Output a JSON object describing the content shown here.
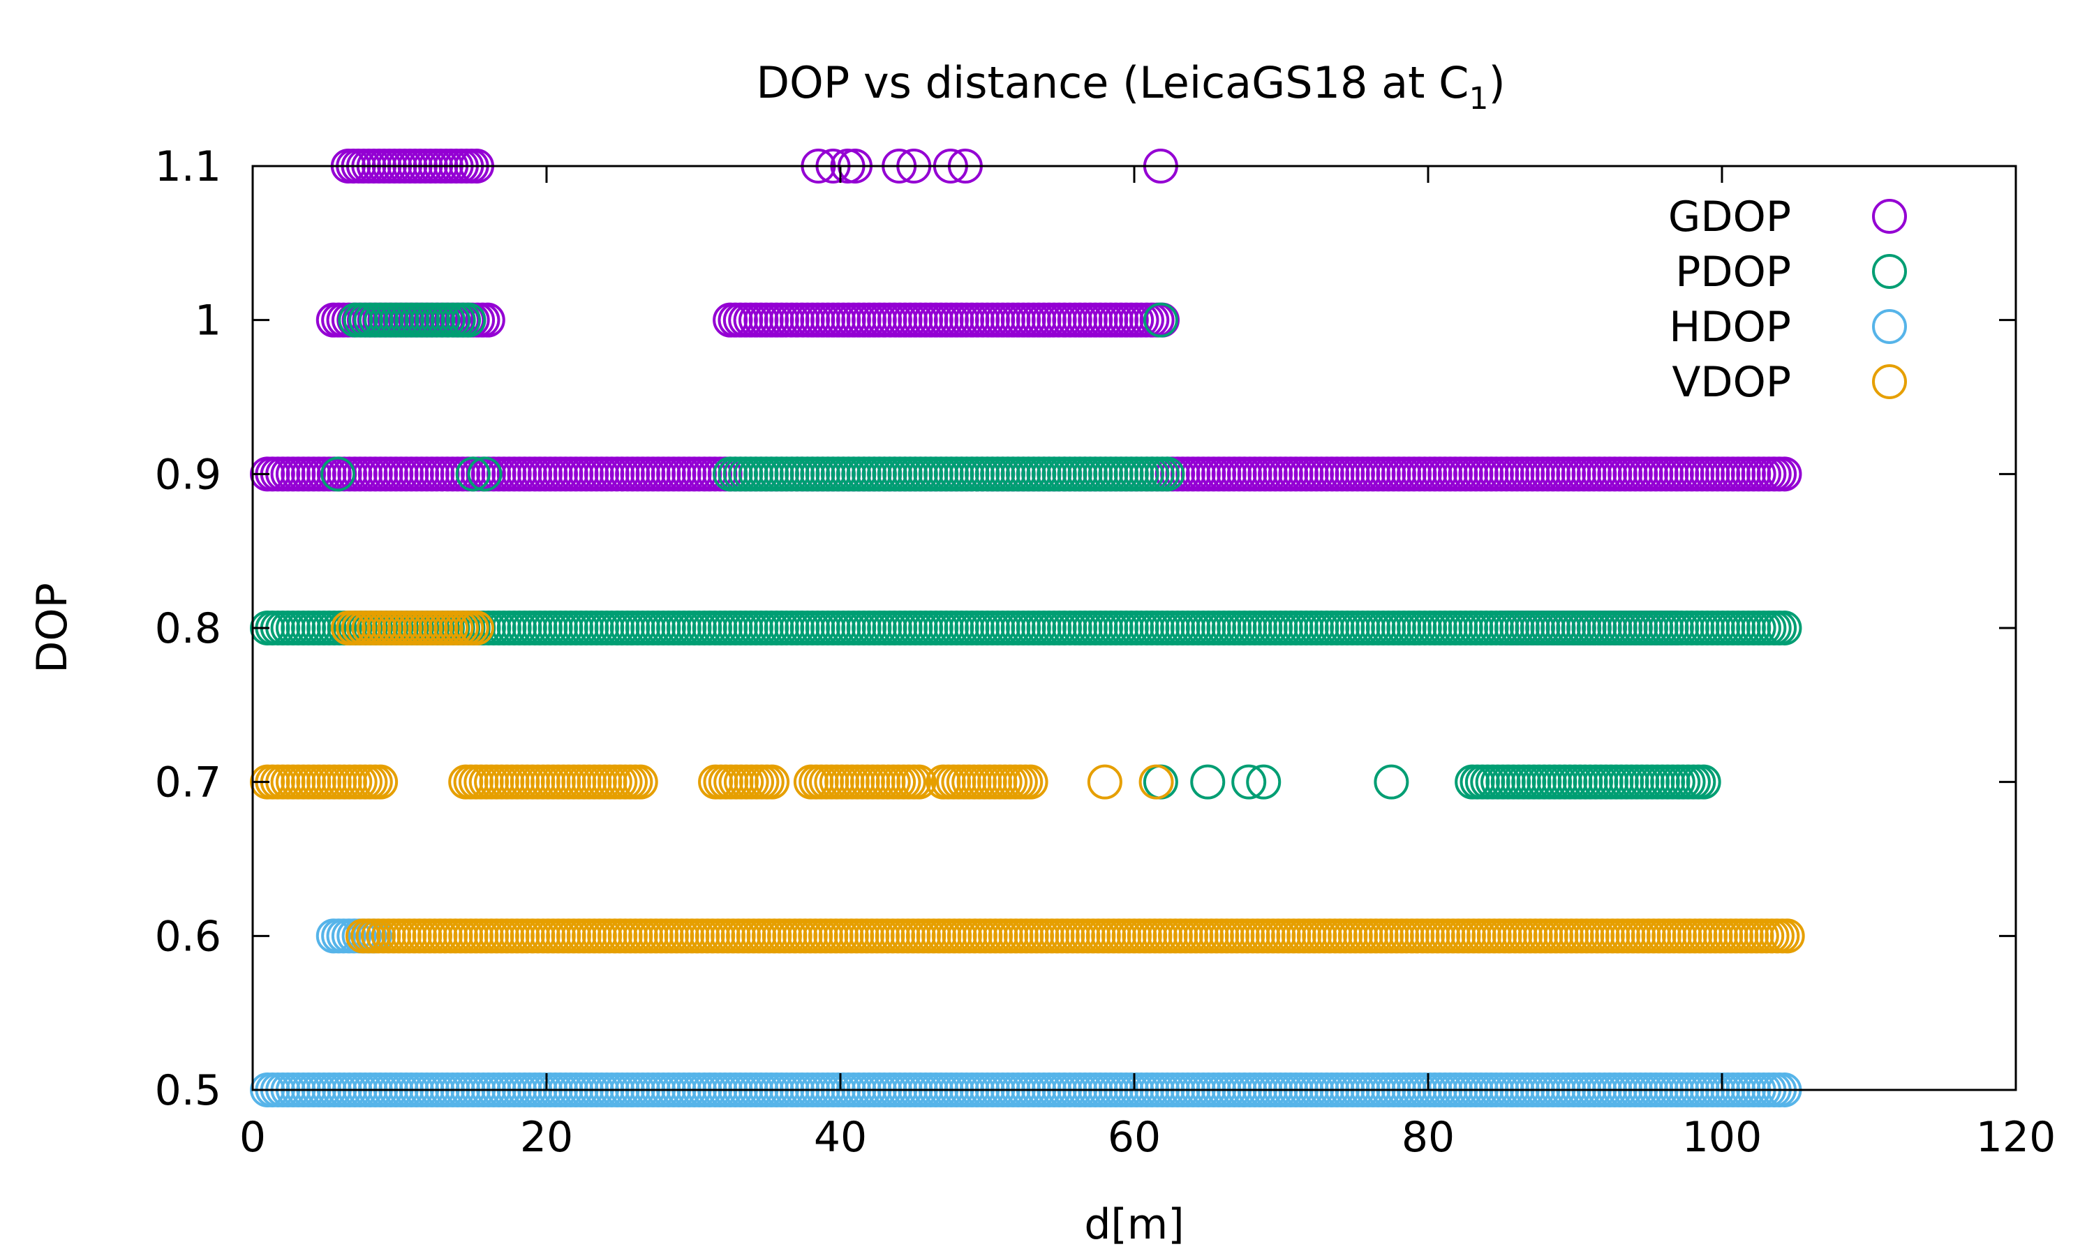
{
  "chart_data": {
    "type": "scatter",
    "title": "DOP vs distance (LeicaGS18 at C",
    "title_subscript": "1",
    "title_suffix": ")",
    "xlabel": "d[m]",
    "ylabel": "DOP",
    "xlim": [
      0,
      120
    ],
    "ylim": [
      0.5,
      1.1
    ],
    "xticks": [
      "0",
      "20",
      "40",
      "60",
      "80",
      "100",
      "120"
    ],
    "yticks": [
      "0.5",
      "0.6",
      "0.7",
      "0.8",
      "0.9",
      "1",
      "1.1"
    ],
    "grid": false,
    "legend_position": "top-right",
    "marker": "open-circle",
    "series": [
      {
        "name": "GDOP",
        "color": "#9400d3",
        "points": [
          {
            "y": 1.1,
            "x_ranges": [
              [
                6.5,
                15.5
              ]
            ],
            "x": [
              38.5,
              39.5,
              40.5,
              41.0,
              44.0,
              45.0,
              47.5,
              48.5,
              61.8
            ]
          },
          {
            "y": 1.0,
            "x_ranges": [
              [
                5.5,
                16.0
              ],
              [
                32.5,
                62.0
              ]
            ],
            "x": []
          },
          {
            "y": 0.9,
            "x_ranges": [
              [
                1.0,
                104.5
              ]
            ],
            "x": []
          },
          {
            "y": 0.8,
            "x_ranges": [
              [
                85.0,
                97.0
              ]
            ],
            "x": []
          }
        ]
      },
      {
        "name": "PDOP",
        "color": "#009e73",
        "points": [
          {
            "y": 1.0,
            "x_ranges": [
              [
                7.0,
                15.0
              ]
            ],
            "x": [
              61.8
            ]
          },
          {
            "y": 0.9,
            "x_ranges": [
              [
                32.5,
                62.5
              ]
            ],
            "x": [
              5.8,
              15.0,
              15.8
            ]
          },
          {
            "y": 0.8,
            "x_ranges": [
              [
                1.0,
                104.5
              ]
            ],
            "x": []
          },
          {
            "y": 0.7,
            "x_ranges": [
              [
                83.0,
                99.0
              ]
            ],
            "x": [
              61.8,
              65.0,
              67.8,
              68.8,
              77.5
            ]
          }
        ]
      },
      {
        "name": "HDOP",
        "color": "#56b4e9",
        "points": [
          {
            "y": 0.6,
            "x_ranges": [
              [
                5.5,
                8.5
              ]
            ],
            "x": []
          },
          {
            "y": 0.5,
            "x_ranges": [
              [
                1.0,
                104.5
              ]
            ],
            "x": []
          }
        ]
      },
      {
        "name": "VDOP",
        "color": "#e69f00",
        "points": [
          {
            "y": 0.8,
            "x_ranges": [
              [
                6.5,
                15.5
              ]
            ],
            "x": []
          },
          {
            "y": 0.7,
            "x_ranges": [
              [
                1.0,
                9.0
              ],
              [
                14.5,
                26.5
              ],
              [
                31.5,
                35.5
              ],
              [
                38.0,
                45.5
              ],
              [
                47.0,
                53.0
              ]
            ],
            "x": [
              58.0,
              61.5
            ]
          },
          {
            "y": 0.6,
            "x_ranges": [
              [
                7.5,
                104.5
              ]
            ],
            "x": []
          }
        ]
      }
    ]
  }
}
